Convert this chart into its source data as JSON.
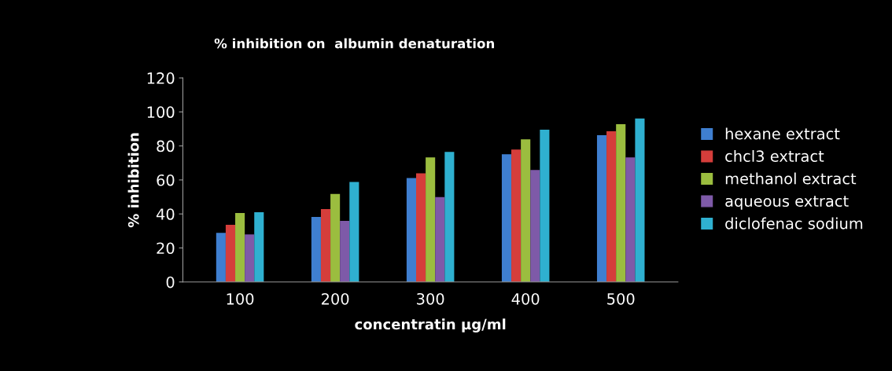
{
  "chart_data": {
    "type": "bar",
    "title": "% inhibition on  albumin denaturation",
    "xlabel": "concentratin µg/ml",
    "ylabel": "% inhibition",
    "categories": [
      "100",
      "200",
      "300",
      "400",
      "500"
    ],
    "series": [
      {
        "name": "hexane extract",
        "color": "#3f7fd0",
        "values": [
          28.9,
          38.2,
          61.1,
          75.1,
          86.3
        ]
      },
      {
        "name": "chcl3 extract",
        "color": "#d53e3b",
        "values": [
          33.6,
          42.9,
          63.9,
          77.9,
          88.6
        ]
      },
      {
        "name": "methanol extract",
        "color": "#9bbd3f",
        "values": [
          40.6,
          51.8,
          73.2,
          83.9,
          92.8
        ]
      },
      {
        "name": "aqueous extract",
        "color": "#7e5aa8",
        "values": [
          28.0,
          35.9,
          49.9,
          65.8,
          73.2
        ]
      },
      {
        "name": "diclofenac sodium",
        "color": "#2fb0d0",
        "values": [
          41.0,
          58.8,
          76.5,
          89.5,
          96.1
        ]
      }
    ],
    "ylim": [
      0,
      120
    ],
    "yticks": [
      0,
      20,
      40,
      60,
      80,
      100,
      120
    ],
    "grid": false,
    "legend": "right"
  }
}
